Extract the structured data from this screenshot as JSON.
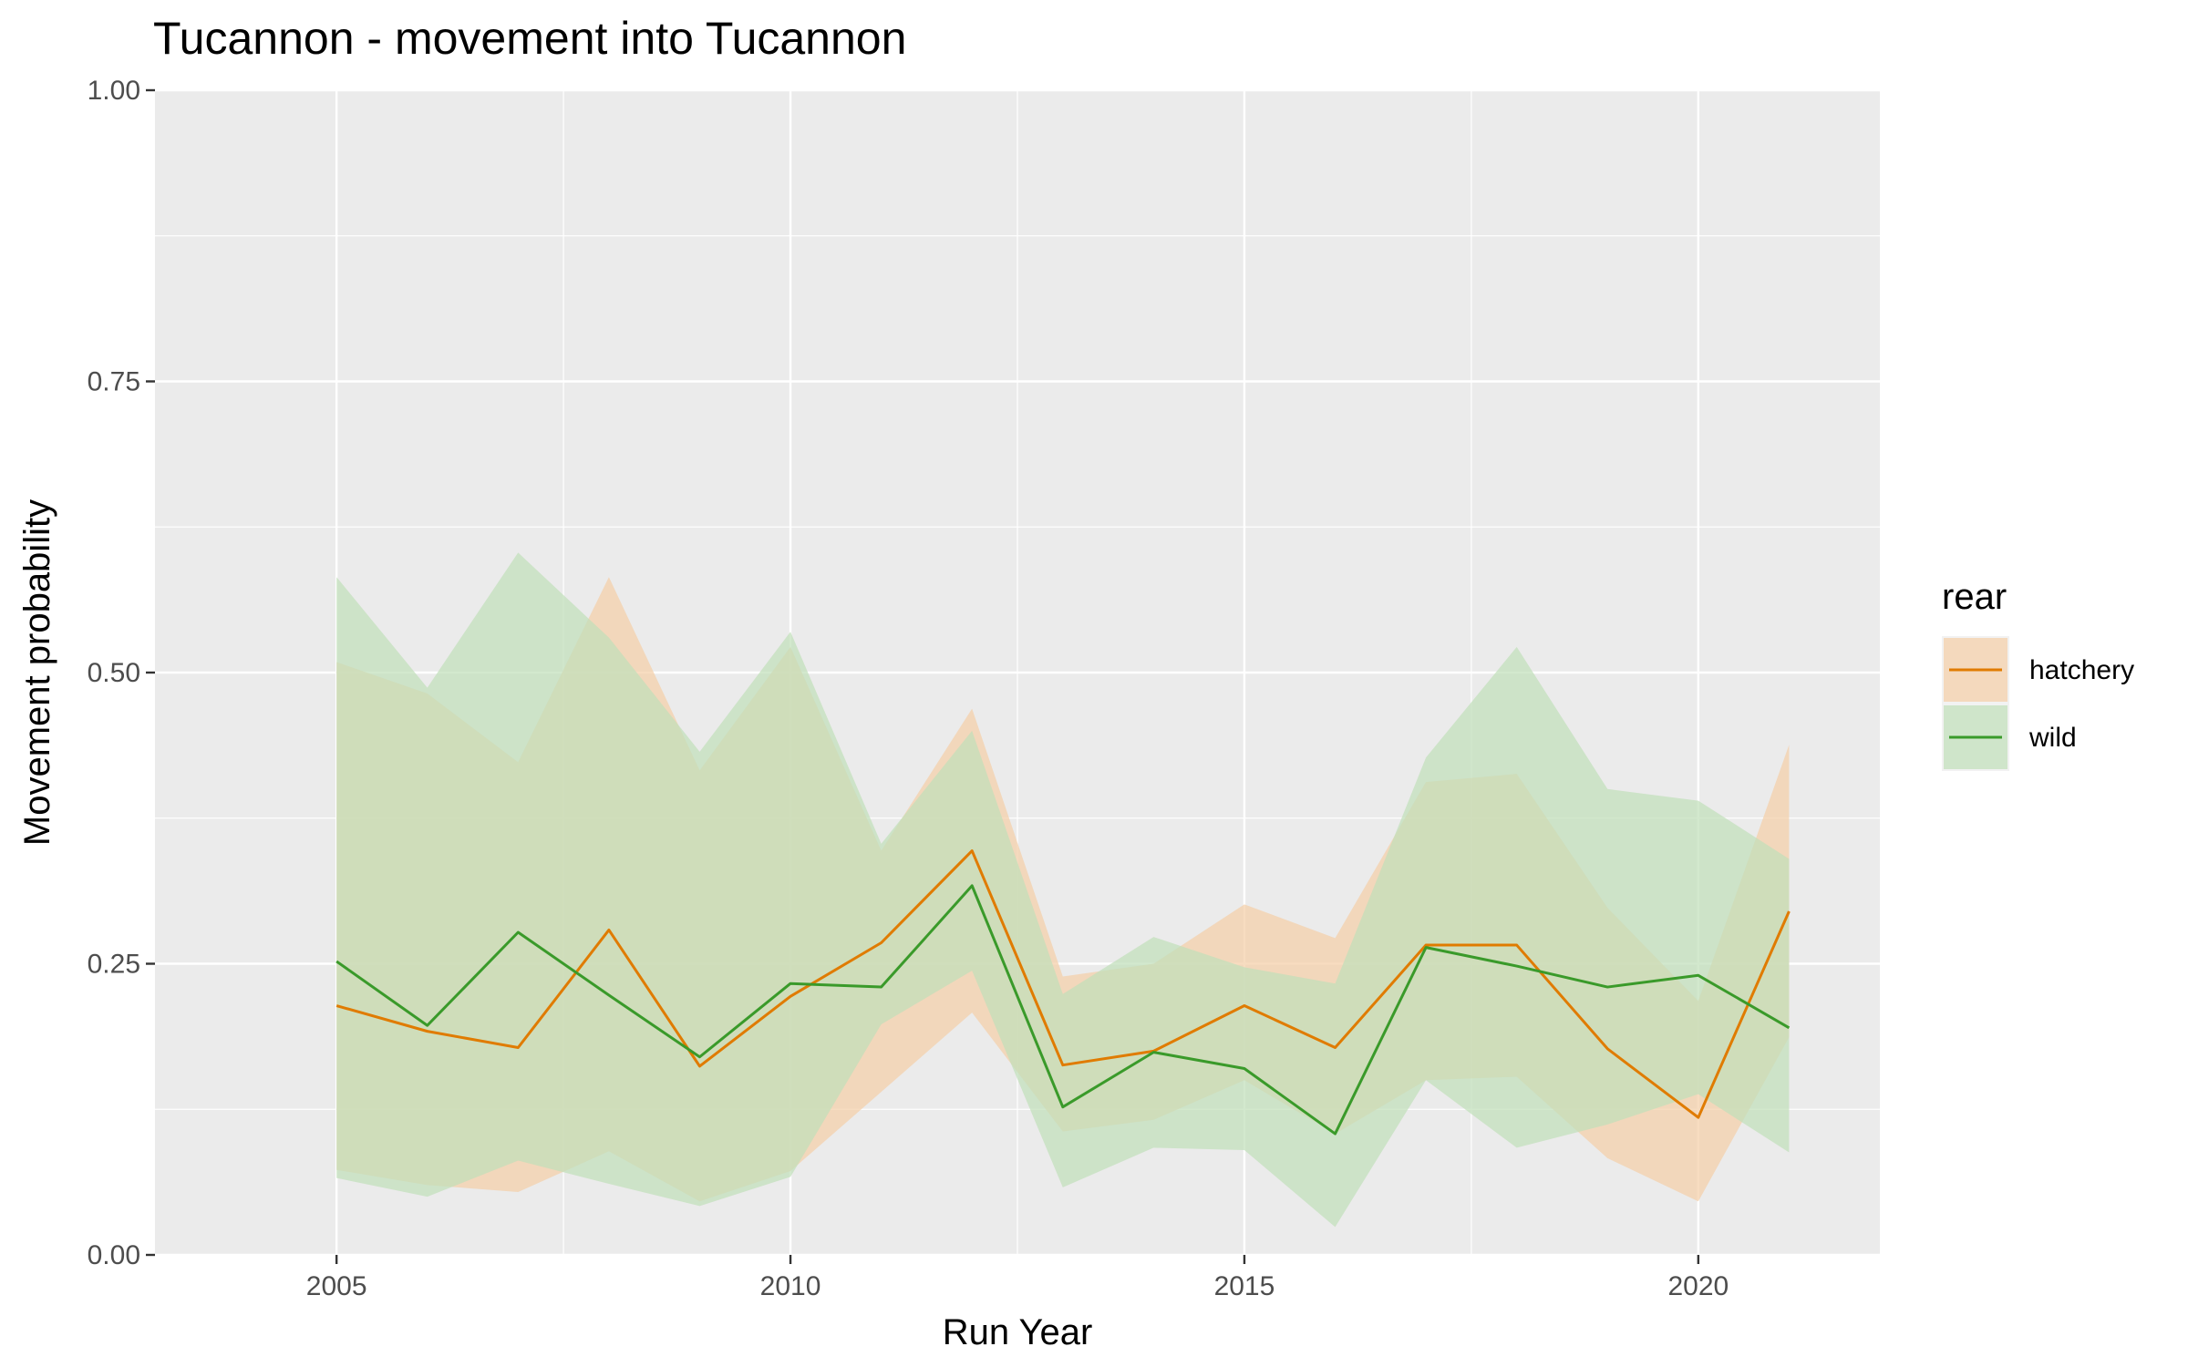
{
  "chart_data": {
    "type": "line",
    "title": "Tucannon - movement into Tucannon",
    "xlabel": "Run Year",
    "ylabel": "Movement probability",
    "xlim": [
      2003,
      2022
    ],
    "ylim": [
      0,
      1
    ],
    "x_ticks": [
      2005,
      2010,
      2015,
      2020
    ],
    "x_tick_labels": [
      "2005",
      "2010",
      "2015",
      "2020"
    ],
    "y_ticks": [
      0,
      0.25,
      0.5,
      0.75,
      1
    ],
    "y_tick_labels": [
      "0.00",
      "0.25",
      "0.50",
      "0.75",
      "1.00"
    ],
    "grid": true,
    "legend": {
      "title": "rear",
      "position": "right"
    },
    "x": [
      2005,
      2006,
      2007,
      2008,
      2009,
      2010,
      2011,
      2012,
      2013,
      2014,
      2015,
      2016,
      2017,
      2018,
      2019,
      2020,
      2021
    ],
    "series": [
      {
        "name": "hatchery",
        "color": "#e07b00",
        "fill_color": "#f4cfa8",
        "values": [
          0.214,
          0.192,
          0.178,
          0.279,
          0.162,
          0.222,
          0.268,
          0.347,
          0.163,
          0.175,
          0.214,
          0.178,
          0.266,
          0.266,
          0.177,
          0.118,
          0.295
        ],
        "lower": [
          0.073,
          0.06,
          0.054,
          0.089,
          0.046,
          0.072,
          0.14,
          0.208,
          0.106,
          0.116,
          0.15,
          0.104,
          0.15,
          0.153,
          0.083,
          0.046,
          0.187
        ],
        "upper": [
          0.509,
          0.482,
          0.423,
          0.582,
          0.416,
          0.522,
          0.347,
          0.469,
          0.239,
          0.25,
          0.301,
          0.272,
          0.406,
          0.413,
          0.298,
          0.218,
          0.438
        ]
      },
      {
        "name": "wild",
        "color": "#3a9a2a",
        "fill_color": "#c0dfba",
        "values": [
          0.252,
          0.197,
          0.277,
          0.223,
          0.17,
          0.233,
          0.23,
          0.317,
          0.127,
          0.174,
          0.16,
          0.104,
          0.264,
          0.248,
          0.23,
          0.24,
          0.195
        ],
        "lower": [
          0.066,
          0.05,
          0.081,
          0.061,
          0.042,
          0.067,
          0.198,
          0.244,
          0.058,
          0.092,
          0.09,
          0.024,
          0.15,
          0.092,
          0.112,
          0.138,
          0.088
        ],
        "upper": [
          0.582,
          0.487,
          0.603,
          0.53,
          0.432,
          0.535,
          0.353,
          0.45,
          0.224,
          0.273,
          0.247,
          0.233,
          0.427,
          0.522,
          0.4,
          0.39,
          0.34
        ]
      }
    ]
  }
}
